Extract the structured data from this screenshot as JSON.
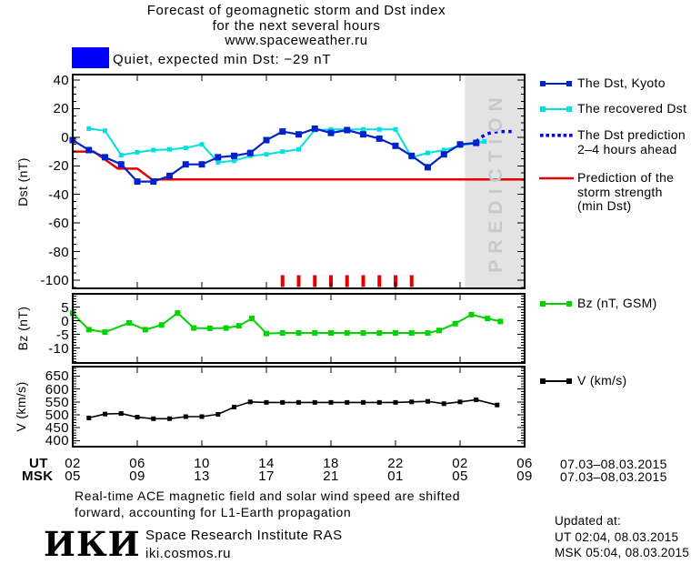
{
  "title": {
    "line1": "Forecast of geomagnetic storm and Dst index",
    "line2": "for the next several hours",
    "line3": "www.spaceweather.ru"
  },
  "status": {
    "text": "Quiet, expected min Dst: −29 nT",
    "box_color": "#0000ff"
  },
  "prediction_band": {
    "label": "PREDICTION",
    "start_hour": 26.3,
    "color": "#e3e3e3",
    "label_color": "#c9c9c9"
  },
  "axis_titles": {
    "dst": "Dst (nT)",
    "bz": "Bz (nT)",
    "v": "V (km/s)"
  },
  "xaxis": {
    "ut_label": "UT",
    "msk_label": "MSK",
    "ut_ticks": [
      "02",
      "06",
      "10",
      "14",
      "18",
      "22",
      "02",
      "06"
    ],
    "msk_ticks": [
      "05",
      "09",
      "13",
      "17",
      "21",
      "01",
      "05",
      "09"
    ],
    "ut_date": "07.03–08.03.2015",
    "msk_date": "07.03–08.03.2015"
  },
  "legend": {
    "dst_items": [
      {
        "lines": [
          "The Dst, Kyoto"
        ],
        "color": "#0022cc",
        "style": "line-squares"
      },
      {
        "lines": [
          "The recovered Dst"
        ],
        "color": "#00e0e0",
        "style": "line-squares"
      },
      {
        "lines": [
          "The Dst prediction",
          "2–4 hours ahead"
        ],
        "color": "#0000ff",
        "style": "dotted"
      },
      {
        "lines": [
          "Prediction of the",
          "storm strength",
          "(min Dst)"
        ],
        "color": "#e80000",
        "style": "line"
      }
    ],
    "bz_item": {
      "lines": [
        "Bz (nT, GSM)"
      ],
      "color": "#00d400",
      "style": "line-squares"
    },
    "v_item": {
      "lines": [
        "V (km/s)"
      ],
      "color": "#000000",
      "style": "line-squares"
    }
  },
  "chart_data": [
    {
      "id": "dst",
      "type": "line",
      "ylabel": "Dst (nT)",
      "ylim": [
        -106,
        43
      ],
      "yticks": [
        40,
        20,
        0,
        -20,
        -40,
        -60,
        -80,
        -100
      ],
      "y_minor_step": 5,
      "x_unit": "UT hours: 2 = 02:00 07.03.2015, 30 = 06:00 08.03.2015",
      "xticks_hours": [
        2,
        6,
        10,
        14,
        18,
        22,
        26,
        30
      ],
      "series": [
        {
          "name": "The Dst, Kyoto",
          "color": "#0022cc",
          "marker": "square",
          "marker_size": 7,
          "width": 2.2,
          "x": [
            2,
            3,
            4,
            5,
            6,
            7,
            8,
            9,
            10,
            11,
            12,
            13,
            14,
            15,
            16,
            17,
            18,
            19,
            20,
            21,
            22,
            23,
            24,
            25,
            26,
            27
          ],
          "values": [
            -2,
            -9,
            -14,
            -19,
            -31,
            -31,
            -27,
            -19,
            -19,
            -14,
            -13,
            -11,
            -2,
            4,
            2,
            6,
            3,
            5,
            2,
            -1,
            -6,
            -13,
            -21,
            -12,
            -5,
            -4
          ]
        },
        {
          "name": "The recovered Dst",
          "color": "#00e0e0",
          "marker": "square",
          "marker_size": 5,
          "width": 2,
          "x": [
            3,
            4,
            5,
            6,
            7,
            8,
            9,
            10,
            11,
            12,
            13,
            14,
            15,
            16,
            17,
            18,
            19,
            20,
            21,
            22,
            23,
            24,
            25,
            26,
            27,
            27.5
          ],
          "values": [
            6,
            4.5,
            -12.5,
            -10.5,
            -9,
            -8.5,
            -7.5,
            -5,
            -17.5,
            -16.5,
            -13,
            -12,
            -10,
            -8.5,
            5,
            5.5,
            5.5,
            5.5,
            5.5,
            5.5,
            -14,
            -11,
            -9,
            -6,
            -4,
            -3
          ]
        },
        {
          "name": "The Dst prediction 2–4 hours ahead",
          "color": "#0000ff",
          "style": "dotted",
          "width": 3.5,
          "x": [
            27,
            27.3,
            27.6,
            28,
            28.4,
            28.8,
            29.2
          ],
          "values": [
            -3,
            0,
            2,
            3.5,
            4,
            4,
            4
          ]
        },
        {
          "name": "Prediction of the storm strength (min Dst)",
          "color": "#e80000",
          "style": "line",
          "width": 2.5,
          "x": [
            2,
            3.3,
            4.8,
            6,
            6.9,
            30
          ],
          "values": [
            -10,
            -10,
            -22,
            -22,
            -29.5,
            -29.5
          ]
        }
      ],
      "event_marks": {
        "color": "#e80000",
        "hours": [
          15,
          16,
          17,
          18,
          19,
          20,
          21,
          22,
          23
        ],
        "note": "red onset tick bars at panel bottom"
      }
    },
    {
      "id": "bz",
      "type": "line",
      "ylabel": "Bz (nT)",
      "ylim": [
        -15.5,
        9.8
      ],
      "yticks": [
        5,
        0,
        -5,
        -10
      ],
      "y_minor_step": 1,
      "x_unit": "UT hours: 2 = 02:00 07.03.2015, 30 = 06:00 08.03.2015",
      "xticks_hours": [
        2,
        6,
        10,
        14,
        18,
        22,
        26,
        30
      ],
      "series": [
        {
          "name": "Bz (nT, GSM)",
          "color": "#00d400",
          "marker": "square",
          "marker_size": 6,
          "width": 2,
          "x": [
            2,
            3,
            4,
            5.5,
            6.5,
            7.5,
            8.5,
            9.5,
            10.5,
            11.5,
            12.3,
            13.1,
            14,
            15,
            16,
            17,
            18,
            19,
            20,
            21,
            22,
            23,
            24,
            24.7,
            25.7,
            26.7,
            27.7,
            28.5
          ],
          "values": [
            2.7,
            -3.3,
            -4.2,
            -0.8,
            -3.3,
            -1.6,
            2.8,
            -2.7,
            -2.8,
            -2.7,
            -1.9,
            0.8,
            -4.7,
            -4.5,
            -4.5,
            -4.5,
            -4.5,
            -4.5,
            -4.5,
            -4.5,
            -4.5,
            -4.5,
            -4.5,
            -3.6,
            -1.1,
            2.2,
            0.8,
            -0.3
          ]
        }
      ]
    },
    {
      "id": "v",
      "type": "line",
      "ylabel": "V (km/s)",
      "ylim": [
        377,
        686
      ],
      "yticks": [
        650,
        600,
        550,
        500,
        450,
        400
      ],
      "y_minor_step": 10,
      "x_unit": "UT hours: 2 = 02:00 07.03.2015, 30 = 06:00 08.03.2015",
      "xticks_hours": [
        2,
        6,
        10,
        14,
        18,
        22,
        26,
        30
      ],
      "series": [
        {
          "name": "V (km/s)",
          "color": "#000000",
          "marker": "square",
          "marker_size": 5,
          "width": 1.6,
          "x": [
            3,
            4,
            5,
            6,
            7,
            8,
            9,
            10,
            11,
            12,
            13,
            14,
            15,
            16,
            17,
            18,
            19,
            20,
            21,
            22,
            23,
            24,
            25,
            26,
            27,
            28.3
          ],
          "values": [
            488,
            503,
            505,
            491,
            485,
            485,
            493,
            493,
            502,
            530,
            550,
            548,
            548,
            548,
            548,
            548,
            548,
            548,
            548,
            548,
            550,
            552,
            543,
            550,
            558,
            538
          ]
        }
      ]
    }
  ],
  "footer": {
    "note_line1": "Real-time ACE magnetic field and solar wind speed are shifted",
    "note_line2": "forward, accounting for L1-Earth propagation",
    "logo": "ИКИ",
    "institute": "Space Research Institute RAS",
    "site": "iki.cosmos.ru",
    "updated_label": "Updated at:",
    "updated_ut": "UT   02:04, 08.03.2015",
    "updated_msk": "MSK 05:04, 08.03.2015"
  }
}
